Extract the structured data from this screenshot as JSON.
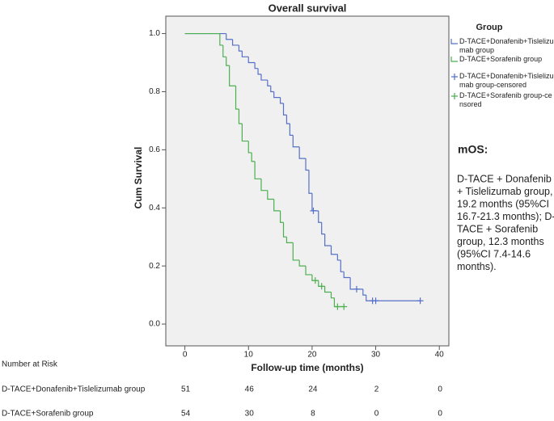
{
  "chart_data": {
    "type": "step",
    "title": "Overall survival",
    "x_label": "Follow-up time (months)",
    "y_label": "Cum Survival",
    "xlim": [
      -3,
      41.5
    ],
    "ylim": [
      -0.075,
      1.06
    ],
    "xticks": [
      0,
      10,
      20,
      30,
      40
    ],
    "yticks": [
      {
        "value": 0,
        "label": "0.0"
      },
      {
        "value": 0.2,
        "label": "0.2"
      },
      {
        "value": 0.4,
        "label": "0.4"
      },
      {
        "value": 0.6,
        "label": "0.6"
      },
      {
        "value": 0.8,
        "label": "0.8"
      },
      {
        "value": 1,
        "label": "1.0"
      }
    ],
    "legend_title": "Group",
    "legend_position": "right",
    "series": [
      {
        "name": "D-TACE+Donafenib+Tislelizumab group",
        "color": "#5670c8",
        "kind": "curve",
        "x": [
          0,
          6.5,
          7.5,
          8.5,
          9,
          10,
          11,
          11.5,
          12,
          13,
          13.5,
          14,
          15,
          15.5,
          16,
          16.5,
          17,
          18,
          19,
          19.5,
          20,
          21,
          21.5,
          22,
          23,
          24,
          24.5,
          25,
          26,
          28,
          28.5,
          37
        ],
        "values": [
          1,
          0.98,
          0.96,
          0.94,
          0.92,
          0.9,
          0.88,
          0.86,
          0.84,
          0.82,
          0.8,
          0.78,
          0.76,
          0.72,
          0.69,
          0.65,
          0.61,
          0.57,
          0.53,
          0.45,
          0.39,
          0.35,
          0.31,
          0.27,
          0.24,
          0.22,
          0.18,
          0.16,
          0.12,
          0.1,
          0.08,
          0.08
        ]
      },
      {
        "name": "D-TACE+Sorafenib group",
        "color": "#4caf50",
        "kind": "curve",
        "x": [
          0,
          5.5,
          6,
          6.5,
          7,
          8,
          8.5,
          9,
          10,
          10.5,
          11,
          12,
          13,
          14,
          15,
          15.5,
          16,
          17,
          18,
          19,
          20,
          21,
          22,
          23,
          23.5,
          25
        ],
        "values": [
          1,
          0.96,
          0.92,
          0.89,
          0.82,
          0.74,
          0.69,
          0.63,
          0.59,
          0.56,
          0.5,
          0.46,
          0.43,
          0.39,
          0.35,
          0.3,
          0.28,
          0.22,
          0.2,
          0.17,
          0.15,
          0.13,
          0.11,
          0.09,
          0.06,
          0.06
        ]
      },
      {
        "name": "D-TACE+Donafenib+Tislelizumab group-censored",
        "color": "#5670c8",
        "kind": "censored",
        "x": [
          20.2,
          27,
          29.5,
          30,
          37
        ],
        "values": [
          0.39,
          0.12,
          0.08,
          0.08,
          0.08
        ]
      },
      {
        "name": "D-TACE+Sorafenib group-censored",
        "color": "#4caf50",
        "kind": "censored",
        "x": [
          20.5,
          21.5,
          24,
          25
        ],
        "values": [
          0.15,
          0.13,
          0.06,
          0.06
        ]
      }
    ],
    "annotation_title": "mOS:",
    "annotation_lines": [
      "D-TACE + Donafenib",
      "+ Tislelizumab group,",
      "19.2 months (95%CI",
      "16.7-21.3 months); D-",
      "TACE + Sorafenib",
      "group, 12.3 months",
      "(95%CI 7.4-14.6",
      "months)."
    ],
    "risk_table": {
      "title": "Number at Risk",
      "rows": [
        {
          "name": "D-TACE+Donafenib+Tislelizumab group",
          "counts": [
            51,
            46,
            24,
            2,
            0
          ]
        },
        {
          "name": "D-TACE+Sorafenib group",
          "counts": [
            54,
            30,
            8,
            0,
            0
          ]
        }
      ]
    }
  }
}
